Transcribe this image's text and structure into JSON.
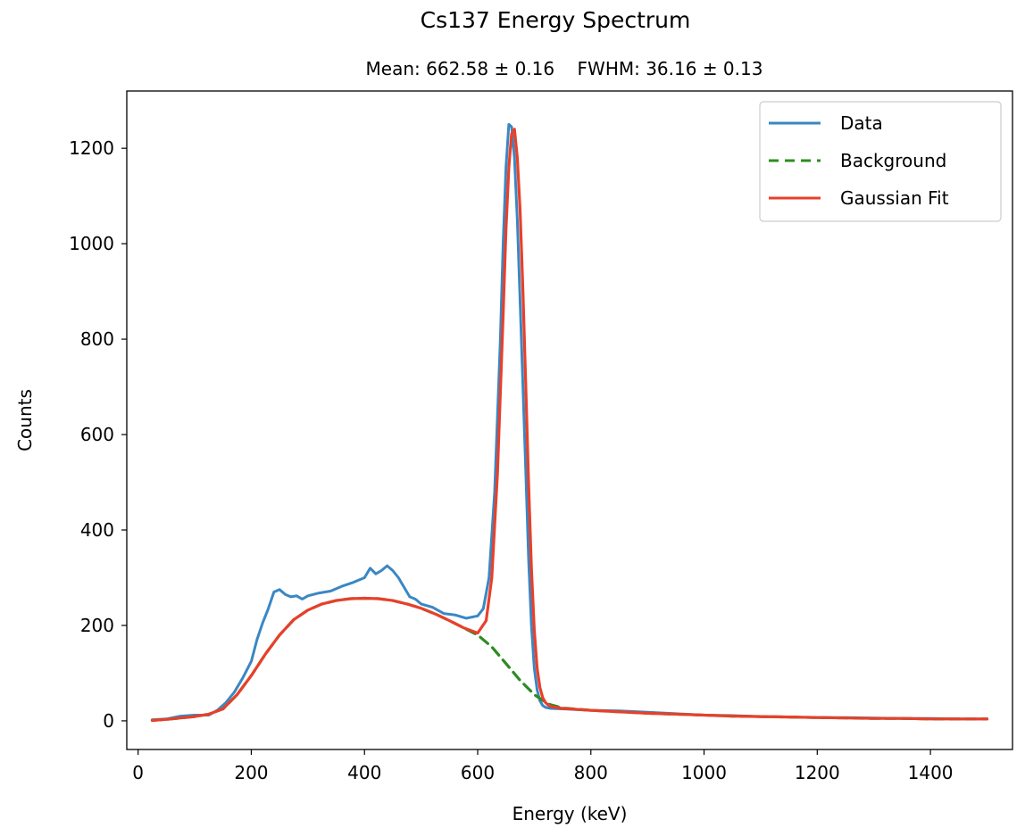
{
  "chart_data": {
    "type": "line",
    "title": "Cs137 Energy Spectrum",
    "subtitle": "Mean: 662.58 ± 0.16    FWHM: 36.16 ± 0.13",
    "xlabel": "Energy (keV)",
    "ylabel": "Counts",
    "xlim": [
      -20,
      1545
    ],
    "ylim": [
      -60,
      1320
    ],
    "xticks": [
      0,
      200,
      400,
      600,
      800,
      1000,
      1200,
      1400
    ],
    "yticks": [
      0,
      200,
      400,
      600,
      800,
      1000,
      1200
    ],
    "legend": {
      "position": "top-right",
      "entries": [
        "Data",
        "Background",
        "Gaussian Fit"
      ]
    },
    "fit": {
      "mean": 662.58,
      "fwhm": 36.16,
      "amplitude": 1060
    },
    "series": [
      {
        "name": "Data",
        "color": "#3a87c4",
        "style": "solid",
        "x": [
          25,
          50,
          75,
          100,
          125,
          140,
          155,
          170,
          185,
          200,
          210,
          220,
          230,
          240,
          250,
          260,
          270,
          280,
          290,
          300,
          320,
          340,
          360,
          380,
          400,
          410,
          420,
          430,
          440,
          450,
          460,
          470,
          480,
          490,
          500,
          520,
          540,
          560,
          580,
          600,
          610,
          620,
          630,
          640,
          645,
          650,
          655,
          660,
          665,
          670,
          675,
          680,
          685,
          690,
          695,
          700,
          705,
          710,
          715,
          720,
          730,
          750,
          800,
          850,
          900,
          950,
          1000,
          1050,
          1100,
          1150,
          1200,
          1250,
          1300,
          1350,
          1400,
          1450,
          1500
        ],
        "y": [
          2,
          4,
          10,
          12,
          12,
          22,
          38,
          60,
          90,
          125,
          170,
          205,
          235,
          270,
          275,
          265,
          260,
          262,
          255,
          262,
          268,
          272,
          282,
          290,
          300,
          320,
          308,
          315,
          325,
          315,
          300,
          280,
          260,
          255,
          245,
          238,
          225,
          222,
          215,
          220,
          235,
          300,
          480,
          800,
          1000,
          1160,
          1250,
          1245,
          1180,
          1050,
          880,
          700,
          520,
          340,
          200,
          110,
          65,
          42,
          32,
          28,
          26,
          25,
          22,
          21,
          18,
          15,
          12,
          11,
          9,
          8,
          7,
          7,
          6,
          5,
          5,
          4,
          4
        ]
      },
      {
        "name": "Background",
        "color": "#2e8b22",
        "style": "dashed",
        "x": [
          25,
          50,
          75,
          100,
          125,
          150,
          175,
          200,
          225,
          250,
          275,
          300,
          325,
          350,
          375,
          400,
          425,
          450,
          475,
          500,
          525,
          550,
          575,
          600,
          625,
          650,
          675,
          700,
          725,
          750,
          800,
          850,
          900,
          950,
          1000,
          1050,
          1100,
          1150,
          1200,
          1250,
          1300,
          1350,
          1400,
          1450,
          1500
        ],
        "y": [
          1,
          3,
          6,
          9,
          14,
          25,
          55,
          95,
          140,
          180,
          212,
          232,
          245,
          252,
          256,
          257,
          256,
          252,
          245,
          236,
          224,
          210,
          195,
          180,
          155,
          120,
          85,
          55,
          35,
          27,
          22,
          19,
          16,
          14,
          12,
          10,
          9,
          8,
          7,
          6,
          5,
          5,
          4,
          4,
          4
        ]
      },
      {
        "name": "Gaussian Fit",
        "color": "#e8402a",
        "style": "solid",
        "x": [
          25,
          50,
          75,
          100,
          125,
          150,
          175,
          200,
          225,
          250,
          275,
          300,
          325,
          350,
          375,
          400,
          425,
          450,
          475,
          500,
          525,
          550,
          575,
          600,
          615,
          625,
          635,
          645,
          650,
          655,
          660,
          665,
          670,
          675,
          680,
          685,
          690,
          695,
          700,
          705,
          710,
          715,
          720,
          725,
          730,
          750,
          800,
          850,
          900,
          950,
          1000,
          1050,
          1100,
          1150,
          1200,
          1250,
          1300,
          1350,
          1400,
          1450,
          1500
        ],
        "y": [
          1,
          3,
          6,
          9,
          14,
          25,
          55,
          95,
          140,
          180,
          212,
          232,
          245,
          252,
          256,
          257,
          256,
          252,
          245,
          236,
          224,
          210,
          195,
          184,
          210,
          300,
          520,
          850,
          1030,
          1160,
          1230,
          1240,
          1180,
          1070,
          900,
          700,
          500,
          320,
          190,
          110,
          70,
          48,
          38,
          33,
          30,
          26,
          22,
          19,
          16,
          14,
          12,
          10,
          9,
          8,
          7,
          6,
          5,
          5,
          4,
          4,
          4
        ]
      }
    ]
  }
}
